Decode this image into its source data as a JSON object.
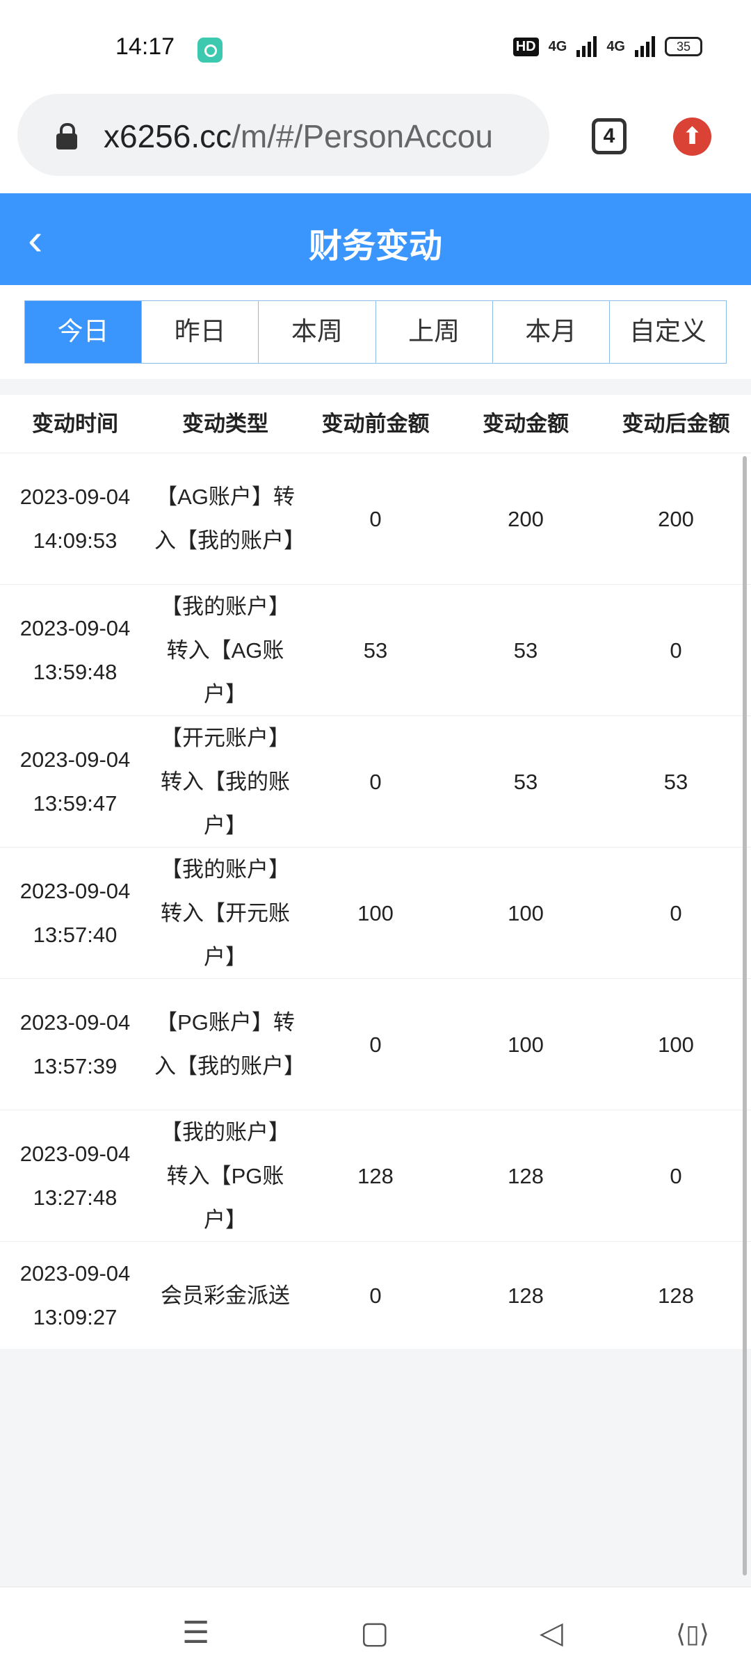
{
  "status_bar": {
    "time": "14:17",
    "hd": "HD",
    "net1": "4G",
    "net2": "4G",
    "battery": "35"
  },
  "browser": {
    "url_domain": "x6256.cc",
    "url_path": "/m/#/PersonAccou",
    "tab_count": "4",
    "icons": [
      "lock-icon",
      "upload-icon"
    ]
  },
  "header": {
    "title": "财务变动",
    "accent": "#3a95fd"
  },
  "tabs": [
    {
      "label": "今日",
      "active": true
    },
    {
      "label": "昨日"
    },
    {
      "label": "本周"
    },
    {
      "label": "上周"
    },
    {
      "label": "本月"
    },
    {
      "label": "自定义"
    }
  ],
  "table": {
    "columns": [
      "变动时间",
      "变动类型",
      "变动前金额",
      "变动金额",
      "变动后金额"
    ],
    "rows": [
      {
        "date": "2023-09-04",
        "time": "14:09:53",
        "type": "【AG账户】转入【我的账户】",
        "before": "0",
        "amount": "200",
        "after": "200"
      },
      {
        "date": "2023-09-04",
        "time": "13:59:48",
        "type": "【我的账户】转入【AG账户】",
        "before": "53",
        "amount": "53",
        "after": "0"
      },
      {
        "date": "2023-09-04",
        "time": "13:59:47",
        "type": "【开元账户】转入【我的账户】",
        "before": "0",
        "amount": "53",
        "after": "53"
      },
      {
        "date": "2023-09-04",
        "time": "13:57:40",
        "type": "【我的账户】转入【开元账户】",
        "before": "100",
        "amount": "100",
        "after": "0"
      },
      {
        "date": "2023-09-04",
        "time": "13:57:39",
        "type": "【PG账户】转入【我的账户】",
        "before": "0",
        "amount": "100",
        "after": "100"
      },
      {
        "date": "2023-09-04",
        "time": "13:27:48",
        "type": "【我的账户】转入【PG账户】",
        "before": "128",
        "amount": "128",
        "after": "0"
      },
      {
        "date": "2023-09-04",
        "time": "13:09:27",
        "type": "会员彩金派送",
        "before": "0",
        "amount": "128",
        "after": "128"
      }
    ]
  },
  "nav": {
    "menu": "☰",
    "home": "▢",
    "back": "◁",
    "rotate": "⟨▯⟩"
  }
}
